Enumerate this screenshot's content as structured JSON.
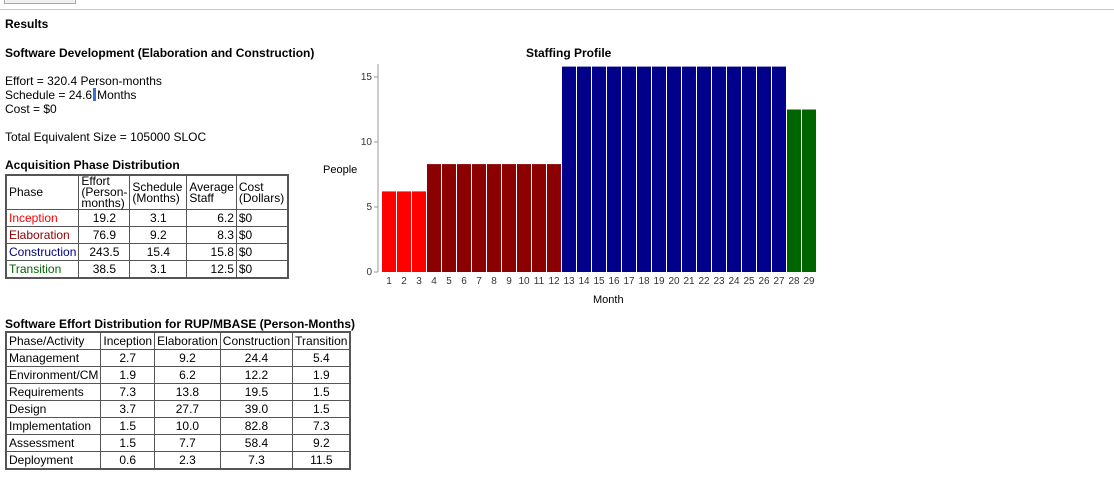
{
  "page": {
    "results_title": "Results",
    "section_title": "Software Development (Elaboration and Construction)"
  },
  "summary": {
    "effort": "Effort = 320.4 Person-months",
    "schedule_pre": "Schedule = 24.6",
    "schedule_post": "Months",
    "cost": "Cost = $0",
    "size": "Total Equivalent Size = 105000 SLOC"
  },
  "acquisition": {
    "title": "Acquisition Phase Distribution",
    "headers": {
      "phase": "Phase",
      "effort": [
        "Effort",
        "(Person-",
        "months)"
      ],
      "schedule": [
        "Schedule",
        "(Months)"
      ],
      "staff": [
        "Average",
        "Staff"
      ],
      "cost": [
        "Cost",
        "(Dollars)"
      ]
    },
    "rows": [
      {
        "phase": "Inception",
        "color": "#ff0000",
        "effort": "19.2",
        "schedule": "3.1",
        "staff": "6.2",
        "cost": "$0"
      },
      {
        "phase": "Elaboration",
        "color": "#8b0000",
        "effort": "76.9",
        "schedule": "9.2",
        "staff": "8.3",
        "cost": "$0"
      },
      {
        "phase": "Construction",
        "color": "#00008b",
        "effort": "243.5",
        "schedule": "15.4",
        "staff": "15.8",
        "cost": "$0"
      },
      {
        "phase": "Transition",
        "color": "#006400",
        "effort": "38.5",
        "schedule": "3.1",
        "staff": "12.5",
        "cost": "$0"
      }
    ]
  },
  "rup": {
    "title": "Software Effort Distribution for RUP/MBASE (Person-Months)",
    "headers": [
      "Phase/Activity",
      "Inception",
      "Elaboration",
      "Construction",
      "Transition"
    ],
    "rows": [
      [
        "Management",
        "2.7",
        "9.2",
        "24.4",
        "5.4"
      ],
      [
        "Environment/CM",
        "1.9",
        "6.2",
        "12.2",
        "1.9"
      ],
      [
        "Requirements",
        "7.3",
        "13.8",
        "19.5",
        "1.5"
      ],
      [
        "Design",
        "3.7",
        "27.7",
        "39.0",
        "1.5"
      ],
      [
        "Implementation",
        "1.5",
        "10.0",
        "82.8",
        "7.3"
      ],
      [
        "Assessment",
        "1.5",
        "7.7",
        "58.4",
        "9.2"
      ],
      [
        "Deployment",
        "0.6",
        "2.3",
        "7.3",
        "11.5"
      ]
    ]
  },
  "chart_data": {
    "type": "bar",
    "title": "Staffing Profile",
    "xlabel": "Month",
    "ylabel": "People",
    "ylim": [
      0,
      16
    ],
    "yticks": [
      0,
      5,
      10,
      15
    ],
    "categories": [
      "1",
      "2",
      "3",
      "4",
      "5",
      "6",
      "7",
      "8",
      "9",
      "10",
      "11",
      "12",
      "13",
      "14",
      "15",
      "16",
      "17",
      "18",
      "19",
      "20",
      "21",
      "22",
      "23",
      "24",
      "25",
      "26",
      "27",
      "28",
      "29"
    ],
    "series": [
      {
        "name": "Inception",
        "color": "#ff0000",
        "values": [
          6.2,
          6.2,
          6.2,
          null,
          null,
          null,
          null,
          null,
          null,
          null,
          null,
          null,
          null,
          null,
          null,
          null,
          null,
          null,
          null,
          null,
          null,
          null,
          null,
          null,
          null,
          null,
          null,
          null,
          null
        ]
      },
      {
        "name": "Elaboration",
        "color": "#8b0000",
        "values": [
          null,
          null,
          null,
          8.3,
          8.3,
          8.3,
          8.3,
          8.3,
          8.3,
          8.3,
          8.3,
          8.3,
          null,
          null,
          null,
          null,
          null,
          null,
          null,
          null,
          null,
          null,
          null,
          null,
          null,
          null,
          null,
          null,
          null
        ]
      },
      {
        "name": "Construction",
        "color": "#00008b",
        "values": [
          null,
          null,
          null,
          null,
          null,
          null,
          null,
          null,
          null,
          null,
          null,
          null,
          15.8,
          15.8,
          15.8,
          15.8,
          15.8,
          15.8,
          15.8,
          15.8,
          15.8,
          15.8,
          15.8,
          15.8,
          15.8,
          15.8,
          15.8,
          null,
          null
        ]
      },
      {
        "name": "Transition",
        "color": "#006400",
        "values": [
          null,
          null,
          null,
          null,
          null,
          null,
          null,
          null,
          null,
          null,
          null,
          null,
          null,
          null,
          null,
          null,
          null,
          null,
          null,
          null,
          null,
          null,
          null,
          null,
          null,
          null,
          null,
          12.5,
          12.5
        ]
      }
    ],
    "grid": false,
    "legend": "none"
  }
}
